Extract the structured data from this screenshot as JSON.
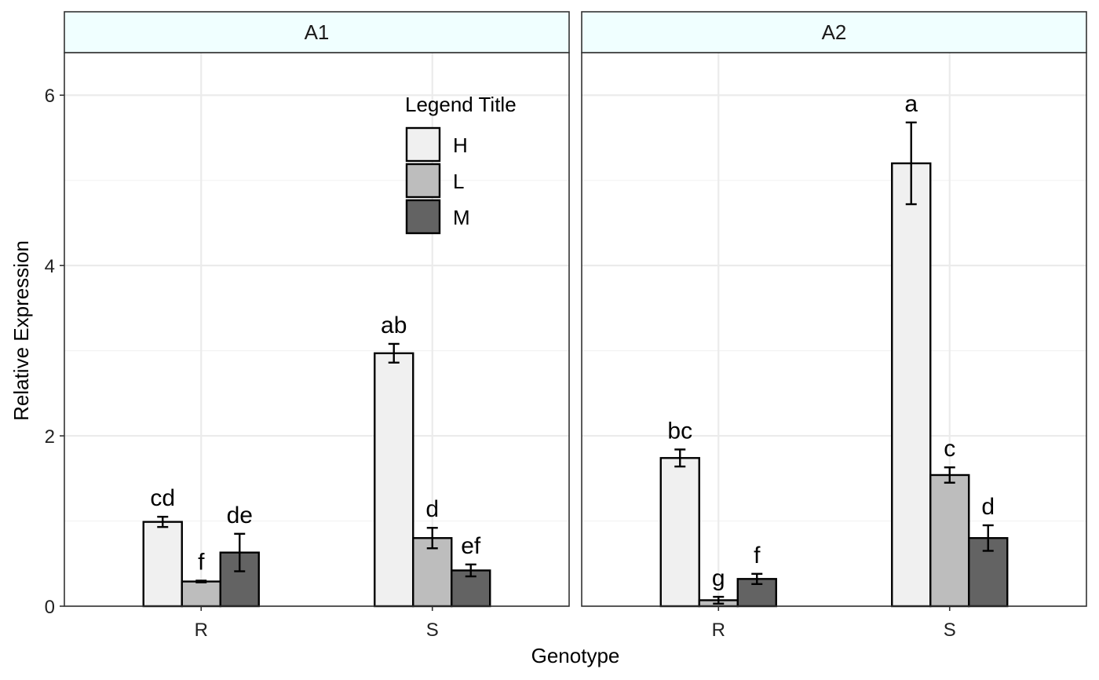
{
  "chart_data": {
    "type": "bar",
    "xlabel": "Genotype",
    "ylabel": "Relative Expression",
    "ylim": [
      0,
      6.5
    ],
    "yticks": [
      "0",
      "2",
      "4",
      "6"
    ],
    "grid": true,
    "legend": {
      "title": "Legend Title",
      "placement": "top-right of first panel",
      "entries": [
        {
          "name": "H",
          "color": "#f0f0f0"
        },
        {
          "name": "L",
          "color": "#bdbdbd"
        },
        {
          "name": "M",
          "color": "#636363"
        }
      ]
    },
    "categories": [
      "R",
      "S"
    ],
    "panels": [
      {
        "name": "A1",
        "series": [
          {
            "name": "H",
            "values": [
              0.99,
              2.97
            ],
            "errors": [
              0.06,
              0.11
            ],
            "labels": [
              "cd",
              "ab"
            ]
          },
          {
            "name": "L",
            "values": [
              0.29,
              0.8
            ],
            "errors": [
              0.01,
              0.12
            ],
            "labels": [
              "f",
              "d"
            ]
          },
          {
            "name": "M",
            "values": [
              0.63,
              0.42
            ],
            "errors": [
              0.22,
              0.07
            ],
            "labels": [
              "de",
              "ef"
            ]
          }
        ]
      },
      {
        "name": "A2",
        "series": [
          {
            "name": "H",
            "values": [
              1.74,
              5.2
            ],
            "errors": [
              0.1,
              0.48
            ],
            "labels": [
              "bc",
              "a"
            ]
          },
          {
            "name": "L",
            "values": [
              0.07,
              1.54
            ],
            "errors": [
              0.04,
              0.09
            ],
            "labels": [
              "g",
              "c"
            ]
          },
          {
            "name": "M",
            "values": [
              0.32,
              0.8
            ],
            "errors": [
              0.06,
              0.15
            ],
            "labels": [
              "f",
              "d"
            ]
          }
        ]
      }
    ]
  }
}
